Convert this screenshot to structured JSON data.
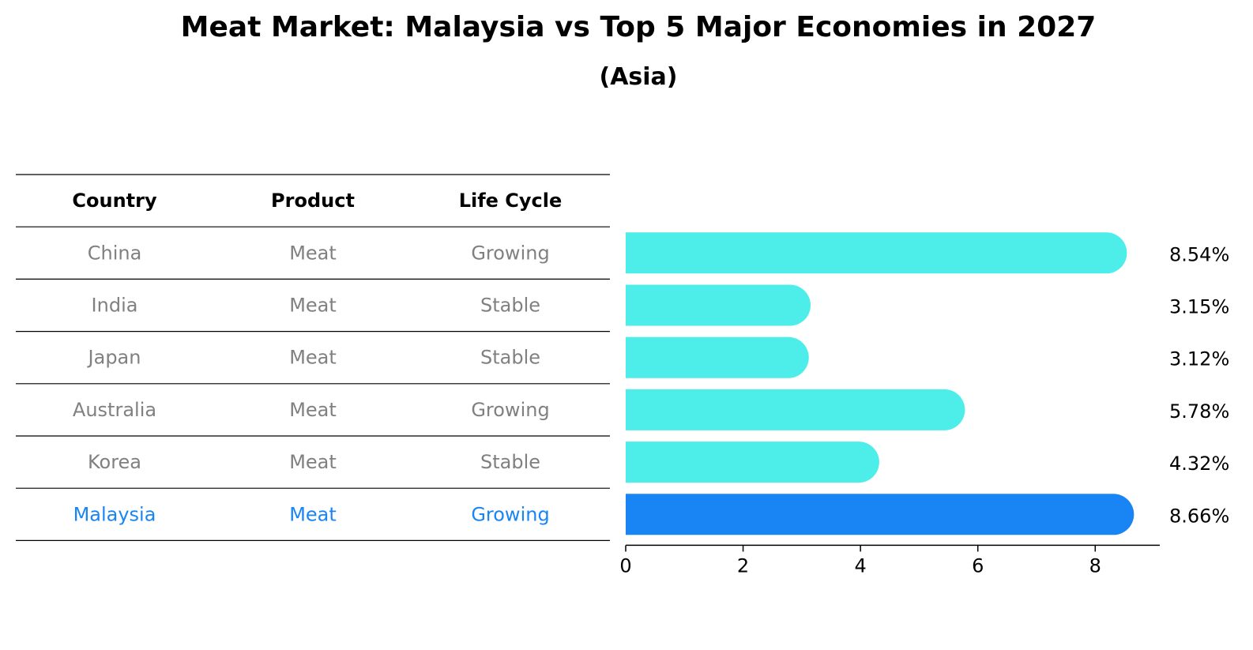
{
  "chart_data": {
    "type": "bar",
    "orientation": "horizontal",
    "title": "Meat Market: Malaysia vs Top 5 Major Economies in 2027",
    "subtitle": "(Asia)",
    "table": {
      "columns": [
        "Country",
        "Product",
        "Life Cycle"
      ],
      "rows": [
        [
          "China",
          "Meat",
          "Growing"
        ],
        [
          "India",
          "Meat",
          "Stable"
        ],
        [
          "Japan",
          "Meat",
          "Stable"
        ],
        [
          "Australia",
          "Meat",
          "Growing"
        ],
        [
          "Korea",
          "Meat",
          "Stable"
        ],
        [
          "Malaysia",
          "Meat",
          "Growing"
        ]
      ]
    },
    "categories": [
      "China",
      "India",
      "Japan",
      "Australia",
      "Korea",
      "Malaysia"
    ],
    "values": [
      8.54,
      3.15,
      3.12,
      5.78,
      4.32,
      8.66
    ],
    "value_labels": [
      "8.54%",
      "3.15%",
      "3.12%",
      "5.78%",
      "4.32%",
      "8.66%"
    ],
    "highlight_index": 5,
    "xlim": [
      0,
      9.1
    ],
    "xticks": [
      0,
      2,
      4,
      6,
      8
    ],
    "grid": false,
    "colors": {
      "bar": "#4DEEEA",
      "highlight_bar": "#1985F5",
      "table_text": "#808080",
      "highlight_text": "#1985F5",
      "header_text": "#000000"
    }
  }
}
